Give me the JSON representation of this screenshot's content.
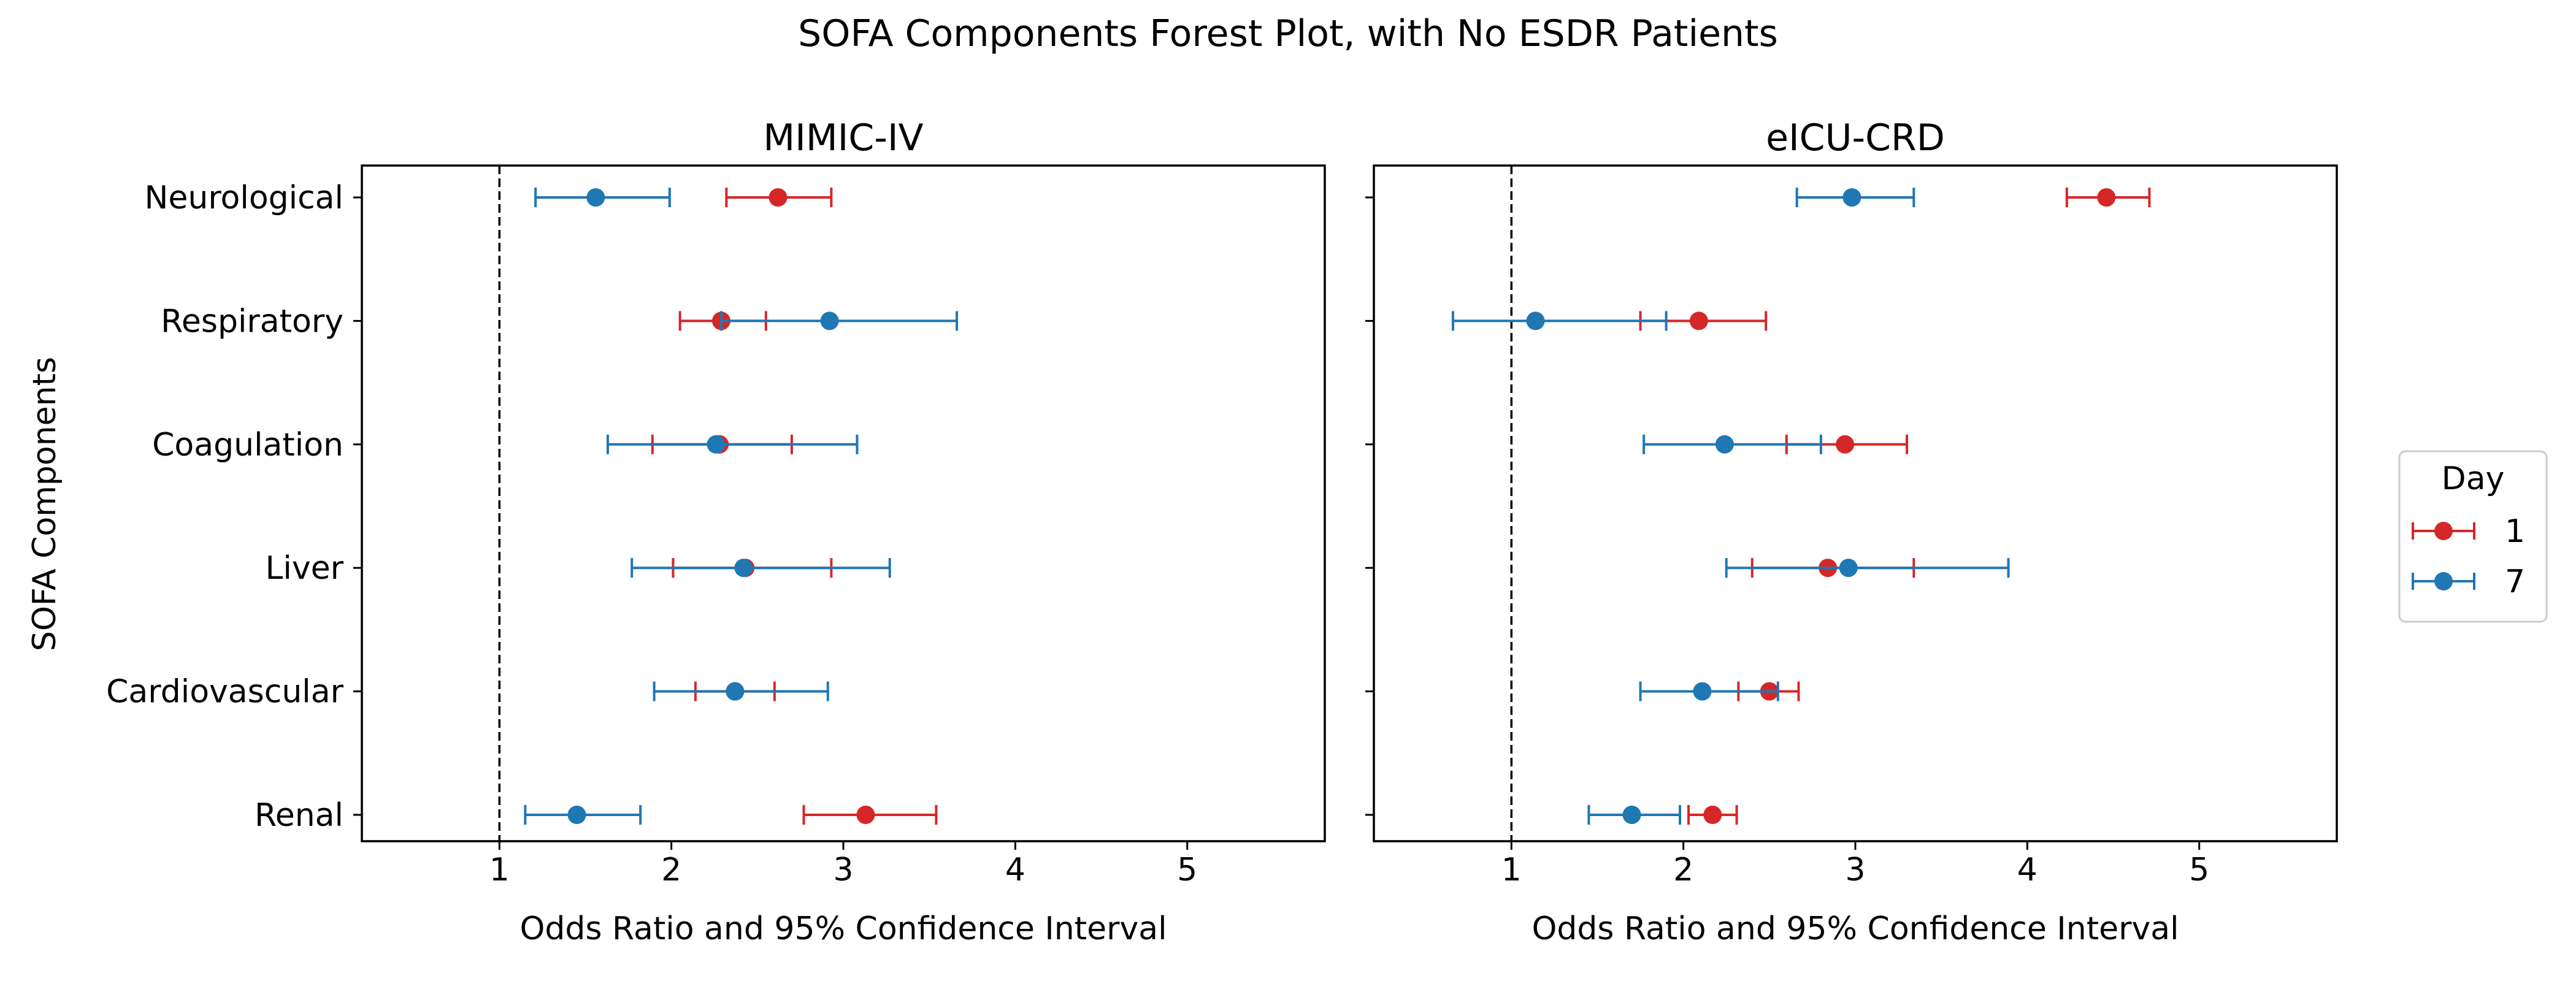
{
  "figure_title": "SOFA Components Forest Plot, with No ESDR Patients",
  "shared_ylabel": "SOFA Components",
  "legend": {
    "title": "Day",
    "placement": "right",
    "entries": [
      {
        "label": "1",
        "color": "#d62728"
      },
      {
        "label": "7",
        "color": "#1f77b4"
      }
    ]
  },
  "chart_data": [
    {
      "type": "forest",
      "title": "MIMIC-IV",
      "xlabel": "Odds Ratio and 95% Confidence Interval",
      "ylabel": "SOFA Components",
      "xlim": [
        0.2,
        5.8
      ],
      "xticks": [
        1,
        2,
        3,
        4,
        5
      ],
      "reference_line": 1,
      "categories": [
        "Neurological",
        "Respiratory",
        "Coagulation",
        "Liver",
        "Cardiovascular",
        "Renal"
      ],
      "series": [
        {
          "name": "1",
          "color": "#d62728",
          "or": [
            2.62,
            2.29,
            2.28,
            2.43,
            2.37,
            3.13
          ],
          "lower": [
            2.32,
            2.05,
            1.89,
            2.01,
            2.14,
            2.77
          ],
          "upper": [
            2.93,
            2.55,
            2.7,
            2.93,
            2.6,
            3.54
          ]
        },
        {
          "name": "7",
          "color": "#1f77b4",
          "or": [
            1.56,
            2.92,
            2.26,
            2.42,
            2.37,
            1.45
          ],
          "lower": [
            1.21,
            2.29,
            1.63,
            1.77,
            1.9,
            1.15
          ],
          "upper": [
            1.99,
            3.66,
            3.08,
            3.27,
            2.91,
            1.82
          ]
        }
      ]
    },
    {
      "type": "forest",
      "title": "eICU-CRD",
      "xlabel": "Odds Ratio and 95% Confidence Interval",
      "xlim": [
        0.2,
        5.8
      ],
      "xticks": [
        1,
        2,
        3,
        4,
        5
      ],
      "reference_line": 1,
      "categories": [
        "Neurological",
        "Respiratory",
        "Coagulation",
        "Liver",
        "Cardiovascular",
        "Renal"
      ],
      "series": [
        {
          "name": "1",
          "color": "#d62728",
          "or": [
            4.46,
            2.09,
            2.94,
            2.84,
            2.5,
            2.17
          ],
          "lower": [
            4.23,
            1.75,
            2.6,
            2.4,
            2.32,
            2.03
          ],
          "upper": [
            4.71,
            2.48,
            3.3,
            3.34,
            2.67,
            2.31
          ]
        },
        {
          "name": "7",
          "color": "#1f77b4",
          "or": [
            2.98,
            1.14,
            2.24,
            2.96,
            2.11,
            1.7
          ],
          "lower": [
            2.66,
            0.66,
            1.77,
            2.25,
            1.75,
            1.45
          ],
          "upper": [
            3.34,
            1.9,
            2.8,
            3.89,
            2.55,
            1.98
          ]
        }
      ]
    }
  ]
}
